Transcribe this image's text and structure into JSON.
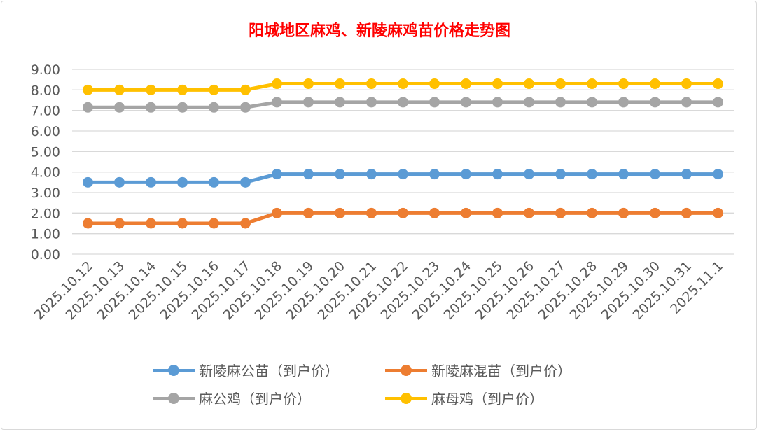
{
  "chart_data": {
    "type": "line",
    "title": "阳城地区麻鸡、新陵麻鸡苗价格走势图",
    "categories": [
      "2025.10.12",
      "2025.10.13",
      "2025.10.14",
      "2025.10.15",
      "2025.10.16",
      "2025.10.17",
      "2025.10.18",
      "2025.10.19",
      "2025.10.20",
      "2025.10.21",
      "2025.10.22",
      "2025.10.23",
      "2025.10.24",
      "2025.10.25",
      "2025.10.26",
      "2025.10.27",
      "2025.10.28",
      "2025.10.29",
      "2025.10.30",
      "2025.10.31",
      "2025.11.1"
    ],
    "ylim": [
      0,
      9
    ],
    "yticks": [
      "0.00",
      "1.00",
      "2.00",
      "3.00",
      "4.00",
      "5.00",
      "6.00",
      "7.00",
      "8.00",
      "9.00"
    ],
    "grid": true,
    "legend": "bottom",
    "series": [
      {
        "name": "新陵麻公苗（到户价）",
        "color": "#5b9bd5",
        "values": [
          3.5,
          3.5,
          3.5,
          3.5,
          3.5,
          3.5,
          3.9,
          3.9,
          3.9,
          3.9,
          3.9,
          3.9,
          3.9,
          3.9,
          3.9,
          3.9,
          3.9,
          3.9,
          3.9,
          3.9,
          3.9
        ]
      },
      {
        "name": "新陵麻混苗（到户价）",
        "color": "#ed7d31",
        "values": [
          1.5,
          1.5,
          1.5,
          1.5,
          1.5,
          1.5,
          2.0,
          2.0,
          2.0,
          2.0,
          2.0,
          2.0,
          2.0,
          2.0,
          2.0,
          2.0,
          2.0,
          2.0,
          2.0,
          2.0,
          2.0
        ]
      },
      {
        "name": "麻公鸡（到户价）",
        "color": "#a5a5a5",
        "values": [
          7.15,
          7.15,
          7.15,
          7.15,
          7.15,
          7.15,
          7.4,
          7.4,
          7.4,
          7.4,
          7.4,
          7.4,
          7.4,
          7.4,
          7.4,
          7.4,
          7.4,
          7.4,
          7.4,
          7.4,
          7.4
        ]
      },
      {
        "name": "麻母鸡（到户价）",
        "color": "#ffc000",
        "values": [
          8.0,
          8.0,
          8.0,
          8.0,
          8.0,
          8.0,
          8.3,
          8.3,
          8.3,
          8.3,
          8.3,
          8.3,
          8.3,
          8.3,
          8.3,
          8.3,
          8.3,
          8.3,
          8.3,
          8.3,
          8.3
        ]
      }
    ]
  }
}
